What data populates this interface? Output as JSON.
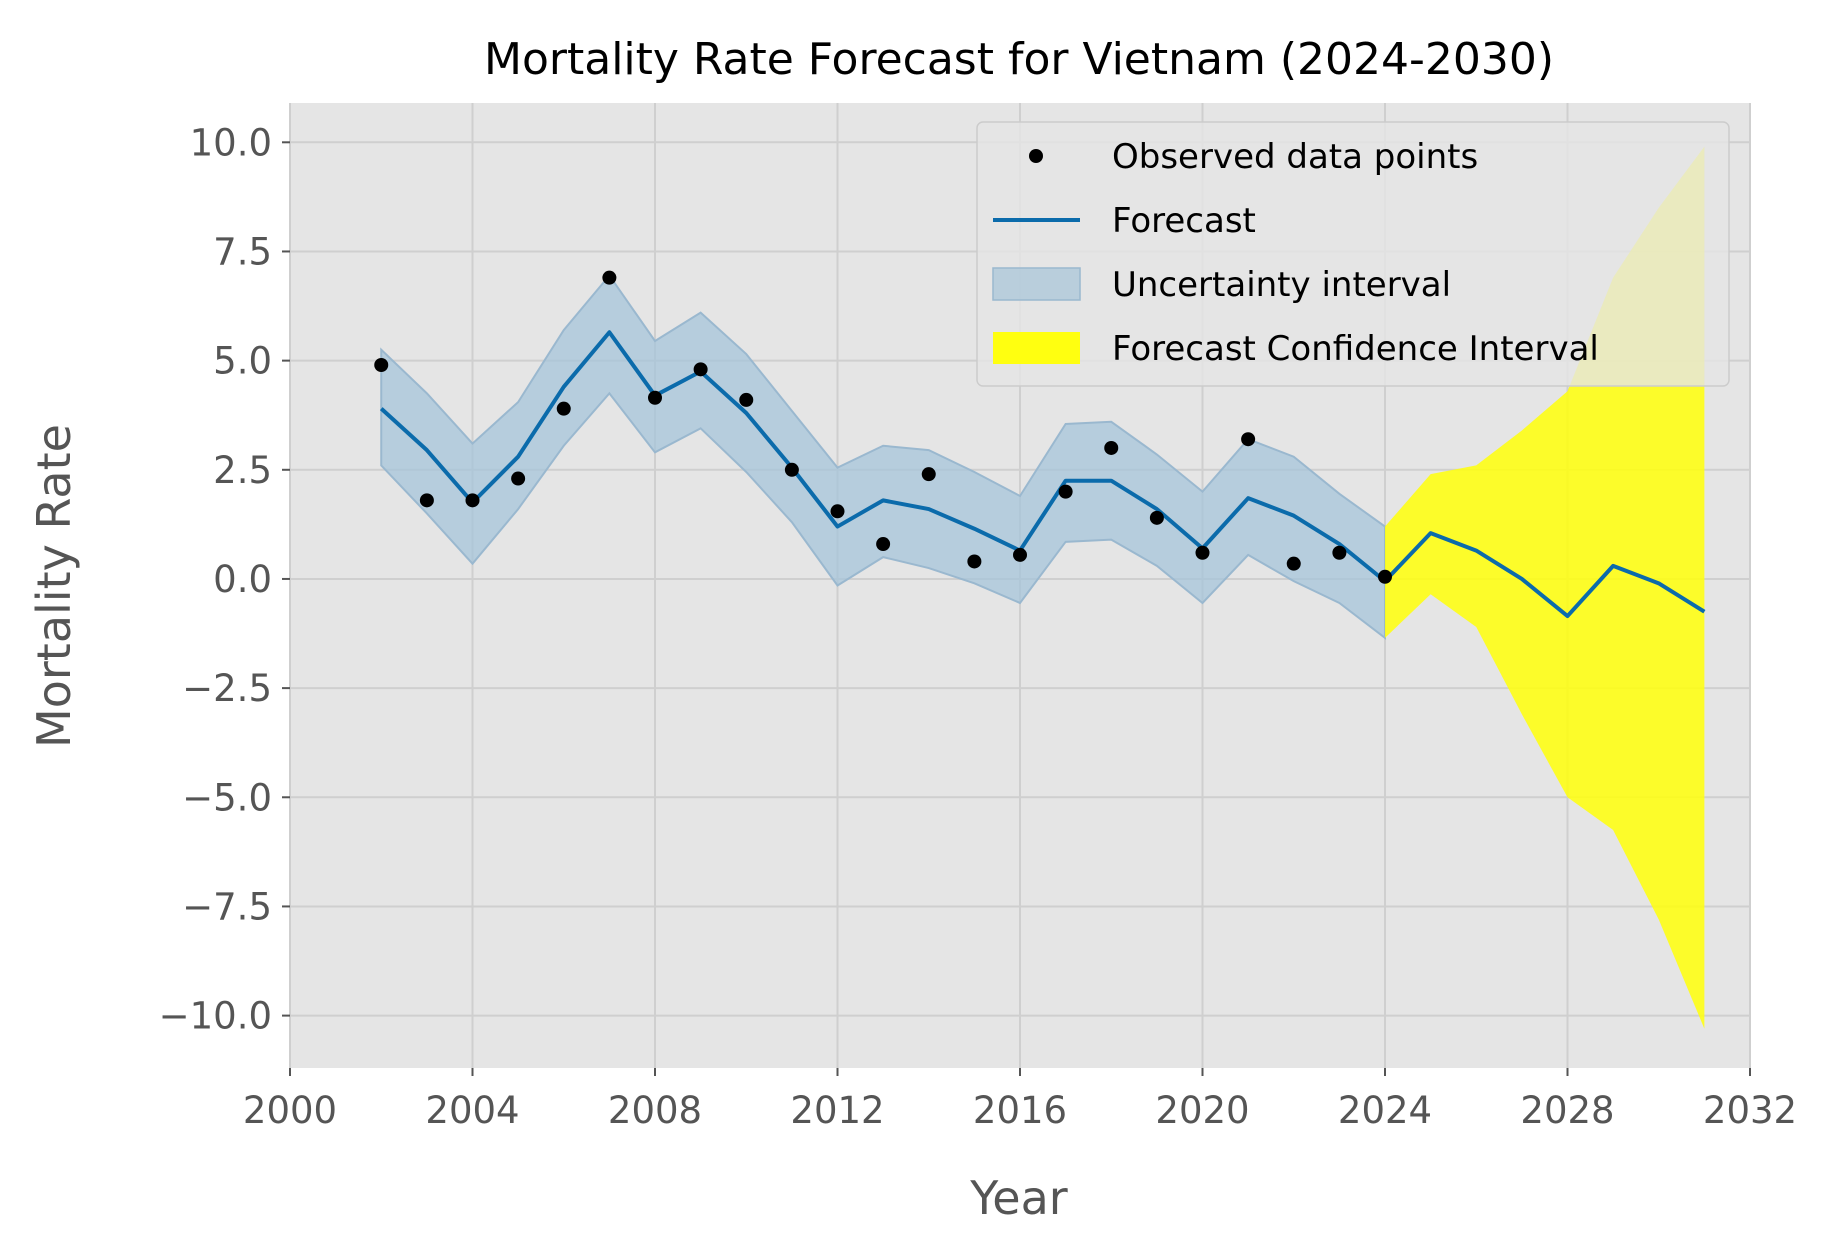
{
  "chart_data": {
    "type": "line",
    "title": "Mortality Rate Forecast for Vietnam (2024-2030)",
    "xlabel": "Year",
    "ylabel": "Mortality Rate",
    "xlim": [
      2000,
      2032
    ],
    "ylim": [
      -11.2,
      10.9
    ],
    "grid": true,
    "legend_position": "top-right",
    "x_ticks": [
      2000,
      2004,
      2008,
      2012,
      2016,
      2020,
      2024,
      2028,
      2032
    ],
    "x_tick_labels": [
      "2000",
      "2004",
      "2008",
      "2012",
      "2016",
      "2020",
      "2024",
      "2028",
      "2032"
    ],
    "y_ticks": [
      10.0,
      7.5,
      5.0,
      2.5,
      0.0,
      -2.5,
      -5.0,
      -7.5,
      -10.0
    ],
    "y_tick_labels": [
      "10.0",
      "7.5",
      "5.0",
      "2.5",
      "0.0",
      "−2.5",
      "−5.0",
      "−7.5",
      "−10.0"
    ],
    "colors": {
      "plot_background": "#e5e5e5",
      "grid": "#cfcfcf",
      "observed": "#000000",
      "forecast_line": "#0b6bab",
      "uncertainty_fill": "#a6c4d9",
      "uncertainty_edge": "#9ab8cf",
      "confidence_fill": "#ffff10"
    },
    "legend": [
      {
        "label": "Observed data points",
        "kind": "marker"
      },
      {
        "label": "Forecast",
        "kind": "line"
      },
      {
        "label": "Uncertainty interval",
        "kind": "band"
      },
      {
        "label": "Forecast Confidence Interval",
        "kind": "patch"
      }
    ],
    "series": [
      {
        "name": "Observed data points",
        "kind": "scatter",
        "x": [
          2002,
          2003,
          2004,
          2005,
          2006,
          2007,
          2008,
          2009,
          2010,
          2011,
          2012,
          2013,
          2014,
          2015,
          2016,
          2017,
          2018,
          2019,
          2020,
          2021,
          2022,
          2023,
          2024
        ],
        "y": [
          4.9,
          1.8,
          1.8,
          2.3,
          3.9,
          6.9,
          4.15,
          4.8,
          4.1,
          2.5,
          1.55,
          0.8,
          2.4,
          0.4,
          0.55,
          2.0,
          3.0,
          1.4,
          0.6,
          3.2,
          0.35,
          0.6,
          0.05
        ]
      },
      {
        "name": "Forecast",
        "kind": "line",
        "x": [
          2002,
          2003,
          2004,
          2005,
          2006,
          2007,
          2008,
          2009,
          2010,
          2011,
          2012,
          2013,
          2014,
          2015,
          2016,
          2017,
          2018,
          2019,
          2020,
          2021,
          2022,
          2023,
          2024,
          2025,
          2026,
          2027,
          2028,
          2029,
          2030,
          2031
        ],
        "y": [
          3.9,
          2.95,
          1.75,
          2.8,
          4.4,
          5.65,
          4.2,
          4.75,
          3.8,
          2.55,
          1.2,
          1.8,
          1.6,
          1.15,
          0.65,
          2.25,
          2.25,
          1.6,
          0.7,
          1.85,
          1.45,
          0.8,
          -0.05,
          1.05,
          0.65,
          0.0,
          -0.85,
          0.3,
          -0.1,
          -0.75
        ]
      },
      {
        "name": "Uncertainty interval",
        "kind": "band",
        "x": [
          2002,
          2003,
          2004,
          2005,
          2006,
          2007,
          2008,
          2009,
          2010,
          2011,
          2012,
          2013,
          2014,
          2015,
          2016,
          2017,
          2018,
          2019,
          2020,
          2021,
          2022,
          2023,
          2024
        ],
        "lower": [
          2.6,
          1.5,
          0.35,
          1.6,
          3.05,
          4.25,
          2.9,
          3.45,
          2.45,
          1.3,
          -0.15,
          0.5,
          0.25,
          -0.1,
          -0.55,
          0.85,
          0.9,
          0.3,
          -0.55,
          0.55,
          -0.05,
          -0.55,
          -1.35
        ],
        "upper": [
          5.25,
          4.25,
          3.1,
          4.05,
          5.7,
          6.95,
          5.45,
          6.1,
          5.15,
          3.85,
          2.55,
          3.05,
          2.95,
          2.45,
          1.9,
          3.55,
          3.6,
          2.85,
          2.0,
          3.2,
          2.8,
          1.95,
          1.2
        ]
      },
      {
        "name": "Forecast Confidence Interval",
        "kind": "band",
        "x": [
          2024,
          2025,
          2026,
          2027,
          2028,
          2029,
          2030,
          2031
        ],
        "lower": [
          -1.35,
          -0.35,
          -1.1,
          -3.1,
          -5.0,
          -5.75,
          -7.8,
          -10.3
        ],
        "upper": [
          1.2,
          2.4,
          2.6,
          3.4,
          4.3,
          6.9,
          8.5,
          9.9
        ]
      }
    ]
  }
}
